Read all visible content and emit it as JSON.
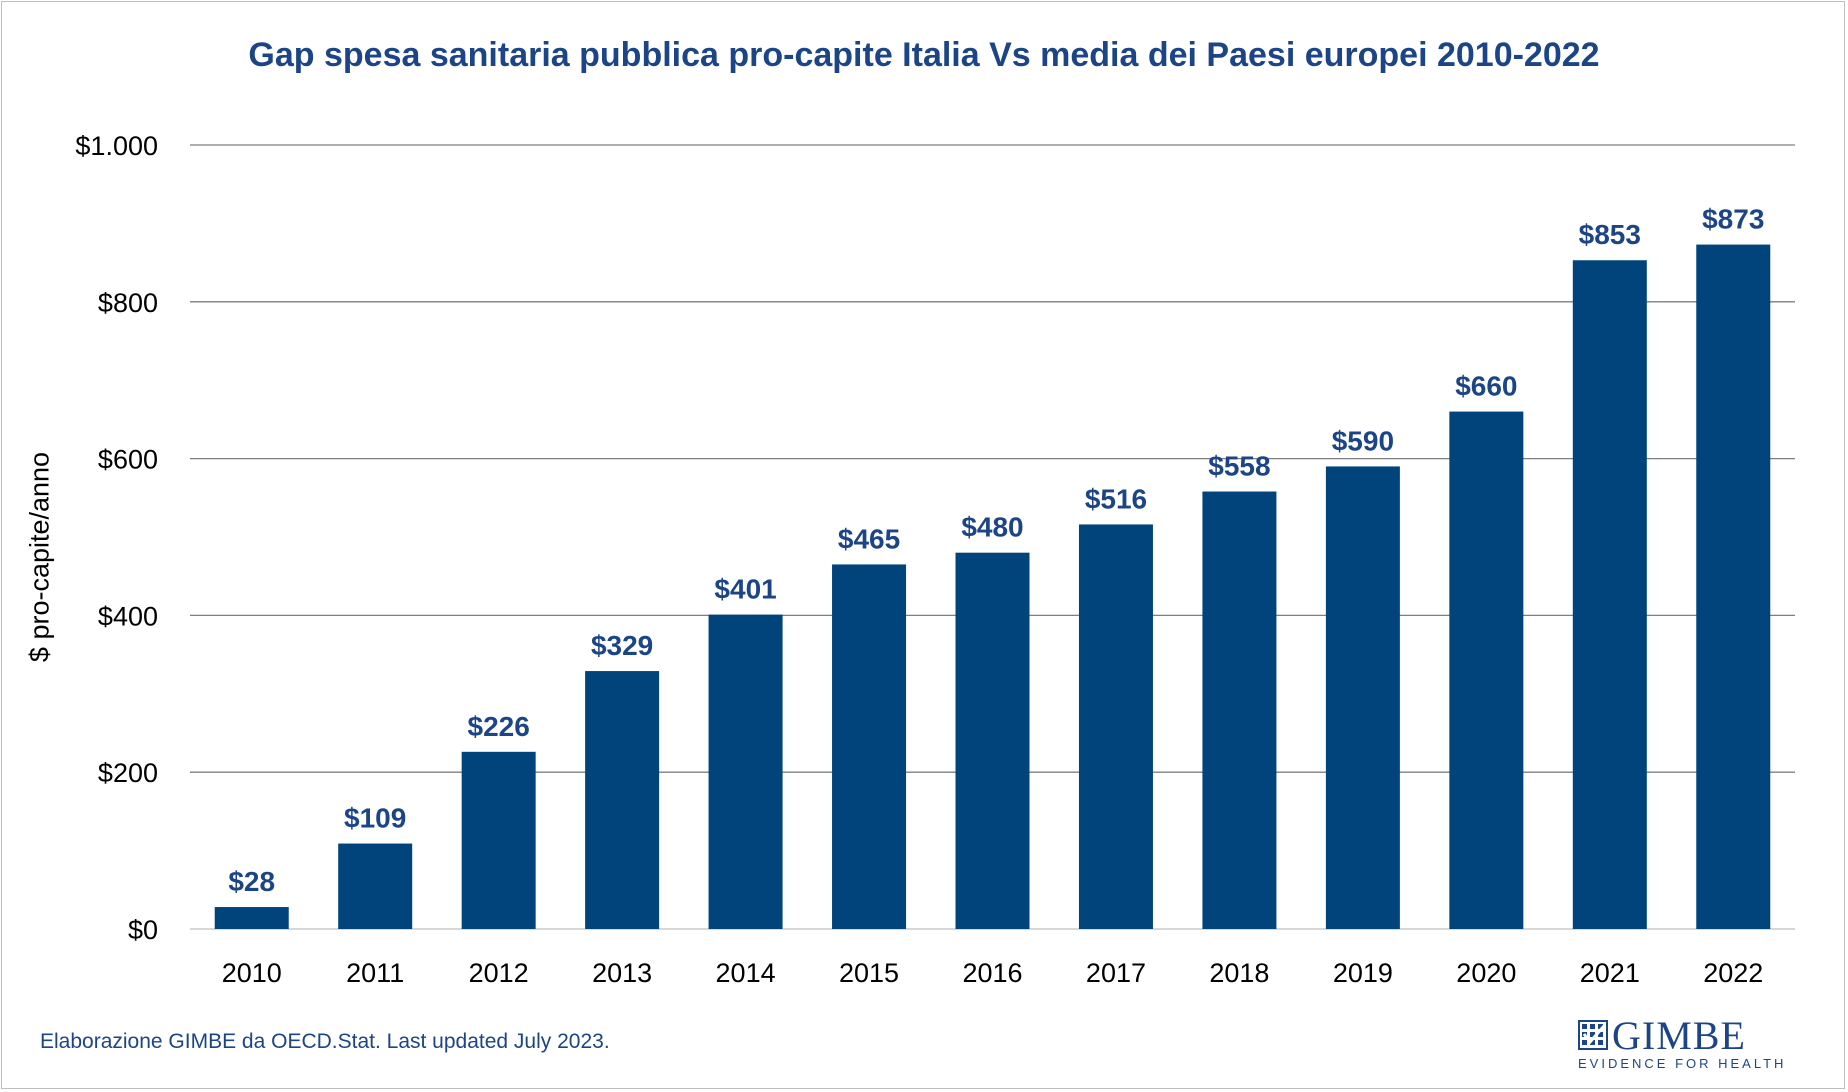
{
  "title": "Gap spesa sanitaria pubblica pro-capite Italia Vs media dei Paesi europei 2010-2022",
  "footer": "Elaborazione GIMBE da OECD.Stat. Last updated July 2023.",
  "logo": {
    "name": "GIMBE",
    "tagline": "EVIDENCE FOR HEALTH"
  },
  "colors": {
    "bar": "#00447c",
    "label": "#1c4587",
    "grid": "#7f7f7f"
  },
  "chart_data": {
    "type": "bar",
    "title": "Gap spesa sanitaria pubblica pro-capite Italia Vs media dei Paesi europei 2010-2022",
    "xlabel": "",
    "ylabel": "$ pro-capite/anno",
    "categories": [
      "2010",
      "2011",
      "2012",
      "2013",
      "2014",
      "2015",
      "2016",
      "2017",
      "2018",
      "2019",
      "2020",
      "2021",
      "2022"
    ],
    "values": [
      28,
      109,
      226,
      329,
      401,
      465,
      480,
      516,
      558,
      590,
      660,
      853,
      873
    ],
    "data_labels": [
      "$28",
      "$109",
      "$226",
      "$329",
      "$401",
      "$465",
      "$480",
      "$516",
      "$558",
      "$590",
      "$660",
      "$853",
      "$873"
    ],
    "ylim": [
      0,
      1000
    ],
    "yticks": [
      0,
      200,
      400,
      600,
      800,
      1000
    ],
    "ytick_labels": [
      "$0",
      "$200",
      "$400",
      "$600",
      "$800",
      "$1.000"
    ],
    "grid": true,
    "legend": "none"
  }
}
